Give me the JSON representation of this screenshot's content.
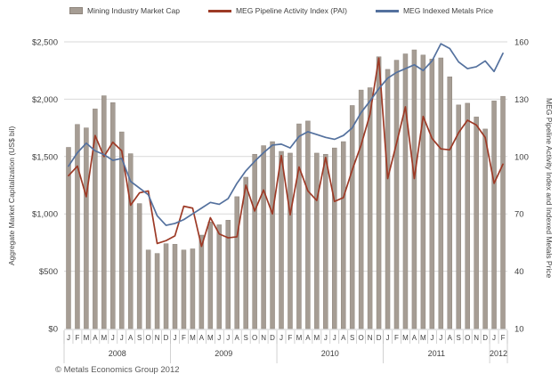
{
  "legend": {
    "items": [
      {
        "label": "Mining Industry Market Cap",
        "swatch": "bar",
        "color": "#a69d94"
      },
      {
        "label": "MEG Pipeline Activity Index (PAI)",
        "swatch": "line",
        "color": "#9d3a26"
      },
      {
        "label": "MEG Indexed Metals Price",
        "swatch": "line",
        "color": "#54719e"
      }
    ]
  },
  "left_axis": {
    "title": "Aggregate Market Capitalization (US$ bil)",
    "ticks": [
      {
        "label": "$0",
        "value": 0
      },
      {
        "label": "$500",
        "value": 500
      },
      {
        "label": "$1,000",
        "value": 1000
      },
      {
        "label": "$1,500",
        "value": 1500
      },
      {
        "label": "$2,000",
        "value": 2000
      },
      {
        "label": "$2,500",
        "value": 2500
      }
    ],
    "range": [
      0,
      2500
    ]
  },
  "right_axis": {
    "title": "MEG Pipeline Activity Index and Indexed Metals Price",
    "ticks": [
      {
        "label": "10",
        "value": 10
      },
      {
        "label": "40",
        "value": 40
      },
      {
        "label": "70",
        "value": 70
      },
      {
        "label": "100",
        "value": 100
      },
      {
        "label": "130",
        "value": 130
      },
      {
        "label": "160",
        "value": 160
      }
    ],
    "range": [
      10,
      160
    ]
  },
  "footer": {
    "copyright": "© Metals Economics Group 2012"
  },
  "colors": {
    "bar": "#a69d94",
    "bar_border": "#8e857c",
    "pai_line": "#9d3a26",
    "metals_line": "#54719e",
    "gridline": "#d9d9d9",
    "tick_line": "#bfbfbf",
    "text": "#404040",
    "muted_text": "#595959"
  },
  "chart_data": {
    "type": "combo-bar-line",
    "title": "",
    "grid": true,
    "legend_position": "top",
    "years": [
      {
        "label": "2008",
        "months": [
          "J",
          "F",
          "M",
          "A",
          "M",
          "J",
          "J",
          "A",
          "S",
          "O",
          "N",
          "D"
        ]
      },
      {
        "label": "2009",
        "months": [
          "J",
          "F",
          "M",
          "A",
          "M",
          "J",
          "J",
          "A",
          "S",
          "O",
          "N",
          "D"
        ]
      },
      {
        "label": "2010",
        "months": [
          "J",
          "F",
          "M",
          "A",
          "M",
          "J",
          "J",
          "A",
          "S",
          "O",
          "N",
          "D"
        ]
      },
      {
        "label": "2011",
        "months": [
          "J",
          "F",
          "M",
          "A",
          "M",
          "J",
          "J",
          "A",
          "S",
          "O",
          "N",
          "D"
        ]
      },
      {
        "label": "2012",
        "months": [
          "J",
          "F"
        ]
      }
    ],
    "series": [
      {
        "name": "Mining Industry Market Cap",
        "type": "bar",
        "axis": "left",
        "values": [
          1580,
          1780,
          1750,
          1915,
          2030,
          1970,
          1715,
          1525,
          1090,
          685,
          655,
          740,
          735,
          685,
          695,
          815,
          930,
          905,
          945,
          1150,
          1320,
          1520,
          1595,
          1630,
          1545,
          1530,
          1785,
          1810,
          1530,
          1520,
          1575,
          1630,
          1945,
          2080,
          2100,
          2370,
          2260,
          2340,
          2395,
          2430,
          2385,
          2350,
          2360,
          2195,
          1950,
          1965,
          1845,
          1740,
          1985,
          2025
        ]
      },
      {
        "name": "MEG Pipeline Activity Index (PAI)",
        "type": "line",
        "axis": "right",
        "values": [
          90,
          95,
          79,
          111,
          100,
          107.5,
          103,
          74.5,
          81,
          82,
          54.5,
          56,
          58.5,
          74,
          73,
          53,
          68,
          59.5,
          57.5,
          58,
          85,
          71.5,
          82.5,
          70,
          100.5,
          69.5,
          94.5,
          82,
          77,
          99.5,
          76.5,
          78.5,
          93,
          106,
          122,
          151.5,
          88.5,
          107,
          126,
          88.5,
          121,
          109.5,
          104,
          103.5,
          112.5,
          119,
          116.5,
          110,
          86,
          96
        ]
      },
      {
        "name": "MEG Indexed Metals Price",
        "type": "line",
        "axis": "right",
        "values": [
          95,
          102,
          107,
          103,
          101,
          98,
          99,
          87,
          83.5,
          80,
          69,
          64,
          65,
          67,
          70,
          73,
          76,
          75,
          78,
          86,
          92.5,
          97.5,
          102,
          106,
          106.5,
          104.5,
          110.5,
          113,
          111.5,
          110,
          109,
          111,
          115,
          123,
          129,
          135.5,
          141,
          144,
          146,
          148,
          145,
          150,
          159,
          156.5,
          149.5,
          146,
          147,
          150,
          144.5,
          154
        ]
      }
    ]
  }
}
